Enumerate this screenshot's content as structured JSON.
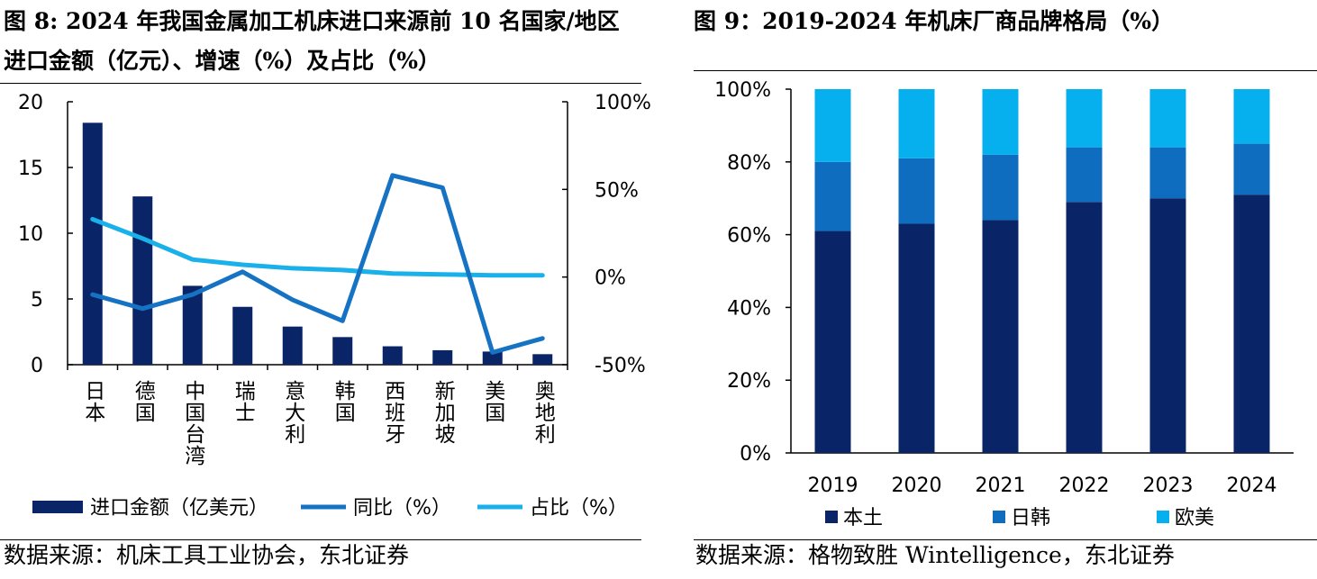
{
  "left": {
    "title": "图 8: 2024 年我国金属加工机床进口来源前 10 名国家/地区进口金额（亿元）、增速（%）及占比（%）",
    "source": "数据来源：机床工具工业协会，东北证券",
    "y_left_ticks": [
      "20",
      "15",
      "10",
      "5",
      "0"
    ],
    "y_right_ticks": [
      "100%",
      "50%",
      "0%",
      "-50%"
    ],
    "legend": [
      "进口金额（亿美元）",
      "同比（%）",
      "占比（%）"
    ],
    "colors": {
      "bar": "#0a2468",
      "yoy": "#1673c4",
      "share": "#1ab0ea"
    }
  },
  "right": {
    "title": "图 9：2019-2024 年机床厂商品牌格局（%）",
    "source": "数据来源：格物致胜 Wintelligence，东北证券",
    "y_ticks": [
      "100%",
      "80%",
      "60%",
      "40%",
      "20%",
      "0%"
    ],
    "legend": [
      "本土",
      "日韩",
      "欧美"
    ],
    "colors": {
      "本土": "#0a2468",
      "日韩": "#0e6dbf",
      "欧美": "#06b0ee"
    }
  },
  "chart_data": [
    {
      "type": "bar",
      "categories": [
        "日本",
        "德国",
        "中国台湾",
        "瑞士",
        "意大利",
        "韩国",
        "西班牙",
        "新加坡",
        "美国",
        "奥地利"
      ],
      "ylim": [
        0,
        20
      ],
      "y2lim": [
        -50,
        100
      ],
      "series": [
        {
          "name": "进口金额（亿美元）",
          "type": "bar",
          "axis": "left",
          "values": [
            18.4,
            12.8,
            6.0,
            4.4,
            2.9,
            2.1,
            1.4,
            1.1,
            1.0,
            0.8
          ]
        },
        {
          "name": "同比（%）",
          "type": "line",
          "axis": "right",
          "values": [
            -10,
            -18,
            -10,
            3,
            -13,
            -25,
            58,
            51,
            -43,
            -35
          ]
        },
        {
          "name": "占比（%）",
          "type": "line",
          "axis": "right",
          "values": [
            33,
            22,
            10,
            7,
            5,
            4,
            2,
            1.5,
            1,
            1
          ]
        }
      ]
    },
    {
      "type": "bar",
      "stacked": true,
      "categories": [
        "2019",
        "2020",
        "2021",
        "2022",
        "2023",
        "2024"
      ],
      "ylim": [
        0,
        100
      ],
      "series": [
        {
          "name": "本土",
          "values": [
            61,
            63,
            64,
            69,
            70,
            71
          ]
        },
        {
          "name": "日韩",
          "values": [
            19,
            18,
            18,
            15,
            14,
            14
          ]
        },
        {
          "name": "欧美",
          "values": [
            20,
            19,
            18,
            16,
            16,
            15
          ]
        }
      ]
    }
  ]
}
